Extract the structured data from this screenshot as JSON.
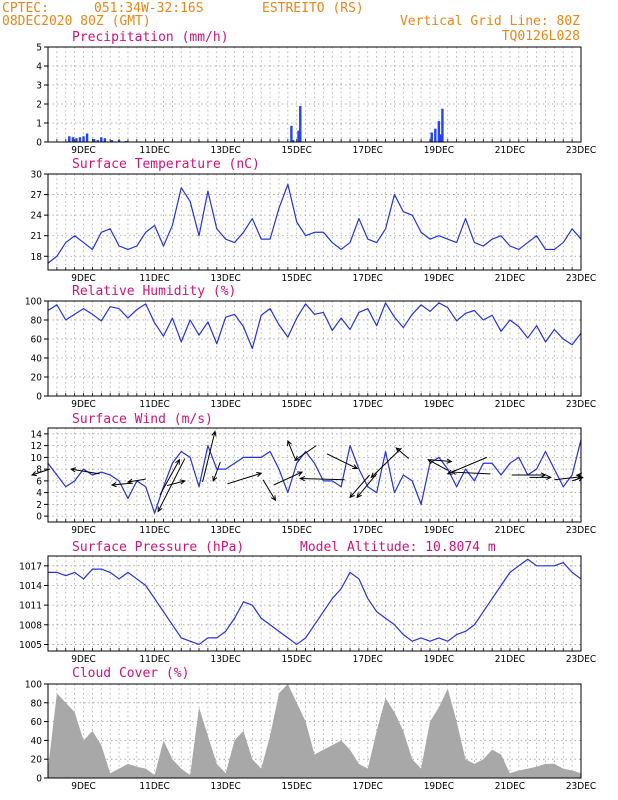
{
  "header": {
    "source": "CPTEC:",
    "coords": "051:34W-32:16S",
    "station": "ESTREITO (RS)",
    "init": "08DEC2020 80Z (GMT)",
    "grid_line": "Vertical Grid Line: 80Z",
    "code": "TQ0126L028"
  },
  "model_altitude": "Model Altitude: 10.8074 m",
  "colors": {
    "header": "#e8861a",
    "title": "#d0127a",
    "line": "#2233dd",
    "bar": "#2244ee",
    "cloud": "#a8a8a8",
    "grid": "#9a9a9a",
    "arrow": "#000000"
  },
  "chart_data": [
    {
      "type": "bar",
      "title": "Precipitation (mm/h)",
      "xticks": [
        "9DEC",
        "11DEC",
        "13DEC",
        "15DEC",
        "17DEC",
        "19DEC",
        "21DEC",
        "23DEC"
      ],
      "ylim": [
        0,
        5
      ],
      "yticks": [
        "0",
        "1",
        "2",
        "3",
        "4",
        "5"
      ],
      "x": [
        8.6,
        8.7,
        8.8,
        8.9,
        9.0,
        9.1,
        9.3,
        9.4,
        9.5,
        9.6,
        9.8,
        10.0,
        10.2,
        14.85,
        14.9,
        15.05,
        15.1,
        18.8,
        18.9,
        19.0,
        19.05,
        19.1
      ],
      "values": [
        0.3,
        0.25,
        0.2,
        0.25,
        0.3,
        0.45,
        0.15,
        0.1,
        0.25,
        0.2,
        0.1,
        0.1,
        0.05,
        0.85,
        0.1,
        0.6,
        1.9,
        0.5,
        0.7,
        1.1,
        0.4,
        1.75
      ]
    },
    {
      "type": "line",
      "title": "Surface Temperature (nC)",
      "xticks": [
        "9DEC",
        "11DEC",
        "13DEC",
        "15DEC",
        "17DEC",
        "19DEC",
        "21DEC",
        "23DEC"
      ],
      "ylim": [
        16,
        30
      ],
      "yticks": [
        "18",
        "21",
        "24",
        "27",
        "30"
      ],
      "x": [
        8.0,
        8.25,
        8.5,
        8.75,
        9.0,
        9.25,
        9.5,
        9.75,
        10.0,
        10.25,
        10.5,
        10.75,
        11.0,
        11.25,
        11.5,
        11.75,
        12.0,
        12.25,
        12.5,
        12.75,
        13.0,
        13.25,
        13.5,
        13.75,
        14.0,
        14.25,
        14.5,
        14.75,
        15.0,
        15.25,
        15.5,
        15.75,
        16.0,
        16.25,
        16.5,
        16.75,
        17.0,
        17.25,
        17.5,
        17.75,
        18.0,
        18.25,
        18.5,
        18.75,
        19.0,
        19.25,
        19.5,
        19.75,
        20.0,
        20.25,
        20.5,
        20.75,
        21.0,
        21.25,
        21.5,
        21.75,
        22.0,
        22.25,
        22.5,
        22.75,
        23.0
      ],
      "values": [
        17.0,
        18.0,
        20.0,
        21.0,
        20.0,
        19.0,
        21.5,
        22.0,
        19.5,
        19.0,
        19.5,
        21.5,
        22.5,
        19.5,
        22.5,
        28.0,
        26.0,
        21.0,
        27.5,
        22.0,
        20.5,
        20.0,
        21.5,
        23.5,
        20.5,
        20.5,
        25.0,
        28.5,
        23.0,
        21.0,
        21.5,
        21.5,
        20.0,
        19.0,
        20.0,
        23.5,
        20.5,
        20.0,
        22.0,
        27.0,
        24.5,
        24.0,
        21.5,
        20.5,
        21.0,
        20.5,
        20.0,
        23.5,
        20.0,
        19.5,
        20.5,
        21.0,
        19.5,
        19.0,
        20.0,
        21.0,
        19.0,
        19.0,
        20.0,
        22.0,
        20.5
      ]
    },
    {
      "type": "line",
      "title": "Relative Humidity (%)",
      "xticks": [
        "9DEC",
        "11DEC",
        "13DEC",
        "15DEC",
        "17DEC",
        "19DEC",
        "21DEC",
        "23DEC"
      ],
      "ylim": [
        0,
        100
      ],
      "yticks": [
        "0",
        "20",
        "40",
        "60",
        "80",
        "100"
      ],
      "x": [
        8.0,
        8.25,
        8.5,
        8.75,
        9.0,
        9.25,
        9.5,
        9.75,
        10.0,
        10.25,
        10.5,
        10.75,
        11.0,
        11.25,
        11.5,
        11.75,
        12.0,
        12.25,
        12.5,
        12.75,
        13.0,
        13.25,
        13.5,
        13.75,
        14.0,
        14.25,
        14.5,
        14.75,
        15.0,
        15.25,
        15.5,
        15.75,
        16.0,
        16.25,
        16.5,
        16.75,
        17.0,
        17.25,
        17.5,
        17.75,
        18.0,
        18.25,
        18.5,
        18.75,
        19.0,
        19.25,
        19.5,
        19.75,
        20.0,
        20.25,
        20.5,
        20.75,
        21.0,
        21.25,
        21.5,
        21.75,
        22.0,
        22.25,
        22.5,
        22.75,
        23.0
      ],
      "values": [
        90,
        96,
        80,
        86,
        92,
        86,
        79,
        94,
        92,
        82,
        91,
        97,
        77,
        63,
        82,
        57,
        80,
        64,
        78,
        55,
        83,
        86,
        73,
        50,
        85,
        92,
        75,
        62,
        82,
        97,
        86,
        88,
        69,
        82,
        70,
        88,
        92,
        74,
        98,
        83,
        72,
        86,
        96,
        89,
        98,
        93,
        79,
        87,
        90,
        80,
        85,
        68,
        80,
        73,
        61,
        74,
        57,
        70,
        60,
        54,
        66
      ]
    },
    {
      "type": "line",
      "title": "Surface Wind (m/s)",
      "xticks": [
        "9DEC",
        "11DEC",
        "13DEC",
        "15DEC",
        "17DEC",
        "19DEC",
        "21DEC",
        "23DEC"
      ],
      "ylim": [
        -1,
        15
      ],
      "yticks": [
        "0",
        "2",
        "4",
        "6",
        "8",
        "10",
        "12",
        "14"
      ],
      "x": [
        8.0,
        8.25,
        8.5,
        8.75,
        9.0,
        9.25,
        9.5,
        9.75,
        10.0,
        10.25,
        10.5,
        10.75,
        11.0,
        11.25,
        11.5,
        11.75,
        12.0,
        12.25,
        12.5,
        12.75,
        13.0,
        13.25,
        13.5,
        13.75,
        14.0,
        14.25,
        14.5,
        14.75,
        15.0,
        15.25,
        15.5,
        15.75,
        16.0,
        16.25,
        16.5,
        16.75,
        17.0,
        17.25,
        17.5,
        17.75,
        18.0,
        18.25,
        18.5,
        18.75,
        19.0,
        19.25,
        19.5,
        19.75,
        20.0,
        20.25,
        20.5,
        20.75,
        21.0,
        21.25,
        21.5,
        21.75,
        22.0,
        22.25,
        22.5,
        22.75,
        23.0
      ],
      "values": [
        9,
        7,
        5,
        6,
        8,
        7,
        7.5,
        7,
        6,
        3,
        6,
        5,
        0.5,
        5,
        9,
        11,
        10,
        5,
        12,
        8,
        8,
        9,
        10,
        10,
        10,
        11,
        8,
        4,
        9,
        11,
        9,
        6,
        6,
        5,
        12,
        8,
        5,
        4,
        11,
        4,
        7,
        6,
        2,
        9,
        10,
        8,
        5,
        8,
        6,
        9,
        9,
        7,
        9,
        10,
        7,
        8,
        11,
        8,
        5,
        7,
        13
      ]
    },
    {
      "type": "line",
      "title": "Surface Pressure (hPa)",
      "xticks": [
        "9DEC",
        "11DEC",
        "13DEC",
        "15DEC",
        "17DEC",
        "19DEC",
        "21DEC",
        "23DEC"
      ],
      "ylim": [
        1004,
        1018.5
      ],
      "yticks": [
        "1005",
        "1008",
        "1011",
        "1014",
        "1017"
      ],
      "x": [
        8.0,
        8.25,
        8.5,
        8.75,
        9.0,
        9.25,
        9.5,
        9.75,
        10.0,
        10.25,
        10.5,
        10.75,
        11.0,
        11.25,
        11.5,
        11.75,
        12.0,
        12.25,
        12.5,
        12.75,
        13.0,
        13.25,
        13.5,
        13.75,
        14.0,
        14.25,
        14.5,
        14.75,
        15.0,
        15.25,
        15.5,
        15.75,
        16.0,
        16.25,
        16.5,
        16.75,
        17.0,
        17.25,
        17.5,
        17.75,
        18.0,
        18.25,
        18.5,
        18.75,
        19.0,
        19.25,
        19.5,
        19.75,
        20.0,
        20.25,
        20.5,
        20.75,
        21.0,
        21.25,
        21.5,
        21.75,
        22.0,
        22.25,
        22.5,
        22.75,
        23.0
      ],
      "values": [
        1016,
        1016,
        1015.5,
        1016,
        1015,
        1016.5,
        1016.5,
        1016,
        1015,
        1016,
        1015,
        1014,
        1012,
        1010,
        1008,
        1006,
        1005.5,
        1005,
        1006,
        1006,
        1007,
        1009,
        1011.5,
        1011,
        1009,
        1008,
        1007,
        1006,
        1005,
        1006,
        1008,
        1010,
        1012,
        1013.5,
        1016,
        1015,
        1012,
        1010,
        1009,
        1008,
        1006.5,
        1005.5,
        1006,
        1005.5,
        1006,
        1005.5,
        1006.5,
        1007,
        1008,
        1010,
        1012,
        1014,
        1016,
        1017,
        1018,
        1017,
        1017,
        1017,
        1017.5,
        1016,
        1015
      ]
    },
    {
      "type": "area",
      "title": "Cloud Cover (%)",
      "xticks": [
        "9DEC",
        "11DEC",
        "13DEC",
        "15DEC",
        "17DEC",
        "19DEC",
        "21DEC",
        "23DEC"
      ],
      "ylim": [
        0,
        100
      ],
      "yticks": [
        "0",
        "20",
        "40",
        "60",
        "80",
        "100"
      ],
      "x": [
        8.0,
        8.25,
        8.5,
        8.75,
        9.0,
        9.25,
        9.5,
        9.75,
        10.0,
        10.25,
        10.5,
        10.75,
        11.0,
        11.25,
        11.5,
        11.75,
        12.0,
        12.25,
        12.5,
        12.75,
        13.0,
        13.25,
        13.5,
        13.75,
        14.0,
        14.25,
        14.5,
        14.75,
        15.0,
        15.25,
        15.5,
        15.75,
        16.0,
        16.25,
        16.5,
        16.75,
        17.0,
        17.25,
        17.5,
        17.75,
        18.0,
        18.25,
        18.5,
        18.75,
        19.0,
        19.25,
        19.5,
        19.75,
        20.0,
        20.25,
        20.5,
        20.75,
        21.0,
        21.25,
        21.5,
        21.75,
        22.0,
        22.25,
        22.5,
        22.75,
        23.0
      ],
      "values": [
        10,
        90,
        80,
        70,
        40,
        50,
        35,
        5,
        10,
        15,
        12,
        10,
        3,
        40,
        20,
        10,
        3,
        75,
        45,
        15,
        5,
        40,
        50,
        20,
        10,
        45,
        90,
        100,
        80,
        60,
        25,
        30,
        35,
        40,
        30,
        15,
        10,
        50,
        85,
        70,
        50,
        20,
        10,
        60,
        75,
        95,
        60,
        20,
        15,
        20,
        30,
        25,
        5,
        8,
        10,
        12,
        15,
        15,
        10,
        8,
        5
      ]
    }
  ],
  "wind_arrows": [
    {
      "x": 8.05,
      "y": 8.0,
      "dx": -0.5,
      "dy": -1.0
    },
    {
      "x": 9.45,
      "y": 7.2,
      "dx": -0.8,
      "dy": 0.8
    },
    {
      "x": 10.35,
      "y": 5.6,
      "dx": -0.55,
      "dy": -0.3
    },
    {
      "x": 10.75,
      "y": 6.3,
      "dx": -0.5,
      "dy": -0.5
    },
    {
      "x": 11.15,
      "y": 3.6,
      "dx": 0.55,
      "dy": 6.0
    },
    {
      "x": 11.35,
      "y": 5.2,
      "dx": 0.5,
      "dy": 0.8
    },
    {
      "x": 11.85,
      "y": 9.8,
      "dx": -0.75,
      "dy": -9.0
    },
    {
      "x": 12.35,
      "y": 5.8,
      "dx": 0.35,
      "dy": 8.6
    },
    {
      "x": 12.85,
      "y": 9.2,
      "dx": -0.2,
      "dy": -3.2
    },
    {
      "x": 13.05,
      "y": 5.5,
      "dx": 0.95,
      "dy": 1.8
    },
    {
      "x": 14.05,
      "y": 6.2,
      "dx": 0.35,
      "dy": -3.5
    },
    {
      "x": 14.35,
      "y": 5.3,
      "dx": 0.8,
      "dy": 2.2
    },
    {
      "x": 14.95,
      "y": 9.8,
      "dx": -0.2,
      "dy": 3.0
    },
    {
      "x": 15.55,
      "y": 12.0,
      "dx": -0.6,
      "dy": -2.5
    },
    {
      "x": 15.85,
      "y": 10.6,
      "dx": 0.85,
      "dy": -2.5
    },
    {
      "x": 16.35,
      "y": 6.2,
      "dx": -1.25,
      "dy": 0.2
    },
    {
      "x": 17.05,
      "y": 7.0,
      "dx": -0.55,
      "dy": -3.8
    },
    {
      "x": 17.25,
      "y": 7.2,
      "dx": -0.55,
      "dy": -4.0
    },
    {
      "x": 17.95,
      "y": 11.6,
      "dx": -0.85,
      "dy": -5.0
    },
    {
      "x": 18.15,
      "y": 9.8,
      "dx": -0.35,
      "dy": 1.8
    },
    {
      "x": 18.75,
      "y": 9.6,
      "dx": 0.6,
      "dy": -0.3
    },
    {
      "x": 19.25,
      "y": 7.8,
      "dx": -0.55,
      "dy": 1.8
    },
    {
      "x": 20.35,
      "y": 10.0,
      "dx": -1.1,
      "dy": -2.8
    },
    {
      "x": 20.45,
      "y": 7.2,
      "dx": -1.1,
      "dy": 0.3
    },
    {
      "x": 21.05,
      "y": 7.0,
      "dx": 0.95,
      "dy": 0.0
    },
    {
      "x": 21.55,
      "y": 6.6,
      "dx": 0.6,
      "dy": 0.0
    },
    {
      "x": 22.25,
      "y": 6.2,
      "dx": 0.75,
      "dy": 0.5
    },
    {
      "x": 22.75,
      "y": 6.0,
      "dx": 0.3,
      "dy": 0.6
    },
    {
      "x": 23.0,
      "y": 7.0,
      "dx": -0.1,
      "dy": 0.0
    }
  ]
}
